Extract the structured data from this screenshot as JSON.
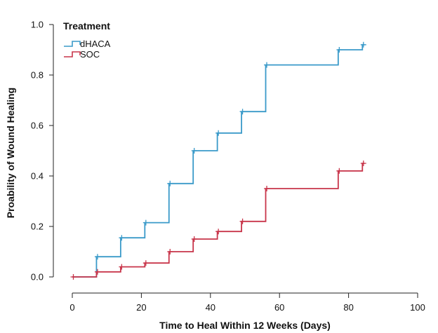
{
  "chart_data": {
    "type": "line",
    "subtype": "kaplan-meier-step",
    "xlabel": "Time to Heal Within 12 Weeks (Days)",
    "ylabel": "Proability of Wound Healing",
    "xlim": [
      0,
      100
    ],
    "ylim": [
      0,
      1.0
    ],
    "xticks": [
      "0",
      "20",
      "40",
      "60",
      "80",
      "100"
    ],
    "yticks": [
      "0.0",
      "0.2",
      "0.4",
      "0.6",
      "0.8",
      "1.0"
    ],
    "grid": false,
    "legend": {
      "title": "Treatment",
      "position": "top-left"
    },
    "series": [
      {
        "name": "dHACA",
        "color": "#3a9ac9",
        "x": [
          0,
          7,
          14,
          21,
          28,
          35,
          42,
          49,
          56,
          77,
          84
        ],
        "y": [
          0.0,
          0.08,
          0.155,
          0.215,
          0.37,
          0.5,
          0.57,
          0.655,
          0.84,
          0.9,
          0.92
        ],
        "censor_x": [
          7,
          14,
          21,
          28,
          35,
          42,
          49,
          56,
          77,
          84
        ]
      },
      {
        "name": "SOC",
        "color": "#c8354a",
        "x": [
          0,
          7,
          14,
          21,
          28,
          35,
          42,
          49,
          56,
          77,
          84
        ],
        "y": [
          0.0,
          0.02,
          0.04,
          0.055,
          0.1,
          0.15,
          0.18,
          0.22,
          0.35,
          0.42,
          0.45
        ],
        "censor_x": [
          0,
          7,
          14,
          21,
          28,
          35,
          42,
          49,
          56,
          77,
          84
        ]
      }
    ]
  }
}
